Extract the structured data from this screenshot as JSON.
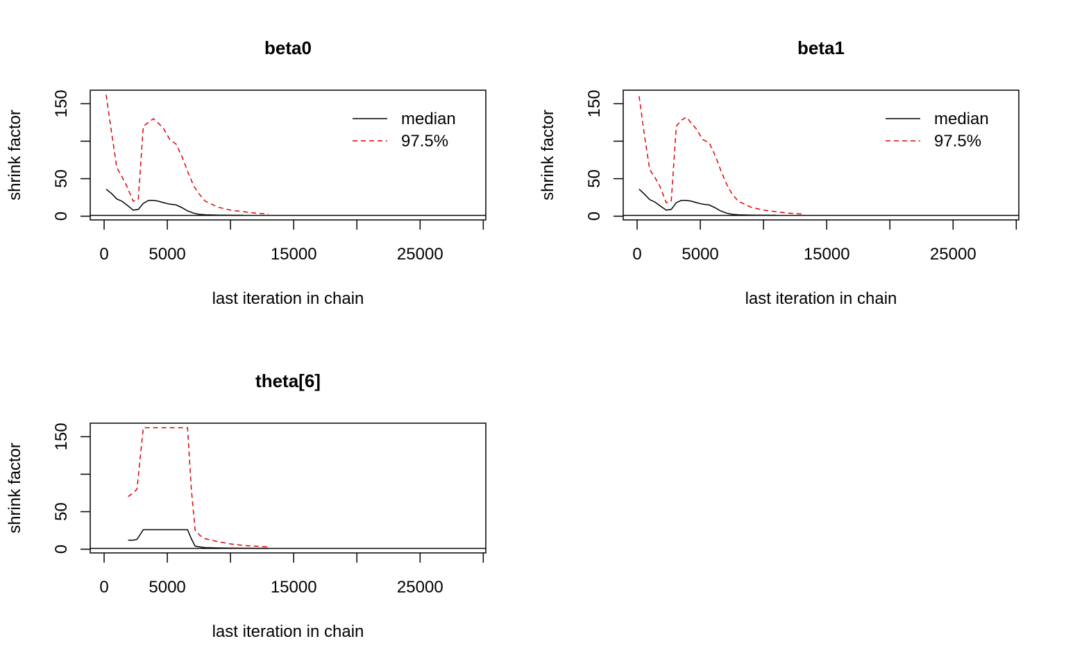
{
  "chart_data": [
    {
      "type": "line",
      "title": "beta0",
      "xlabel": "last iteration in chain",
      "ylabel": "shrink factor",
      "xlim": [
        -1100,
        30200
      ],
      "ylim": [
        -5,
        168
      ],
      "x_ticks": [
        0,
        5000,
        10000,
        15000,
        20000,
        25000,
        30000
      ],
      "x_tick_labels": [
        "0",
        "5000",
        "",
        "15000",
        "",
        "25000",
        ""
      ],
      "y_ticks": [
        0,
        50,
        100,
        150
      ],
      "y_tick_labels": [
        "0",
        "50",
        "",
        "150"
      ],
      "hline": 1,
      "legend": {
        "position": "top-right",
        "entries": [
          "median",
          "97.5%"
        ]
      },
      "series": [
        {
          "name": "median",
          "color": "#000000",
          "dash": "solid",
          "x": [
            160,
            600,
            1000,
            1400,
            1800,
            2300,
            2700,
            3100,
            3500,
            3900,
            4300,
            4700,
            5200,
            5700,
            6200,
            6600,
            7100,
            7500,
            8000,
            9000,
            10000,
            11000
          ],
          "y": [
            36,
            30,
            23,
            20,
            15,
            8,
            9,
            17,
            21,
            21,
            20,
            18,
            16,
            15,
            11,
            7,
            4,
            2.5,
            1.8,
            1.4,
            1.2,
            1.1
          ]
        },
        {
          "name": "97.5%",
          "color": "#e00000",
          "dash": "dashed",
          "x": [
            160,
            600,
            1000,
            1400,
            1800,
            2300,
            2700,
            3100,
            3500,
            3900,
            4300,
            4700,
            5200,
            5700,
            6200,
            6600,
            7100,
            7500,
            8000,
            9000,
            10000,
            11000,
            12000,
            13000
          ],
          "y": [
            162,
            110,
            65,
            53,
            40,
            20,
            22,
            120,
            125,
            130,
            124,
            117,
            102,
            96,
            78,
            60,
            40,
            30,
            20,
            12,
            8,
            6,
            4,
            3
          ]
        }
      ]
    },
    {
      "type": "line",
      "title": "beta1",
      "xlabel": "last iteration in chain",
      "ylabel": "shrink factor",
      "xlim": [
        -1100,
        30200
      ],
      "ylim": [
        -5,
        168
      ],
      "x_ticks": [
        0,
        5000,
        10000,
        15000,
        20000,
        25000,
        30000
      ],
      "x_tick_labels": [
        "0",
        "5000",
        "",
        "15000",
        "",
        "25000",
        ""
      ],
      "y_ticks": [
        0,
        50,
        100,
        150
      ],
      "y_tick_labels": [
        "0",
        "50",
        "",
        "150"
      ],
      "hline": 1,
      "legend": {
        "position": "top-right",
        "entries": [
          "median",
          "97.5%"
        ]
      },
      "series": [
        {
          "name": "median",
          "color": "#000000",
          "dash": "solid",
          "x": [
            160,
            600,
            1000,
            1400,
            1800,
            2300,
            2700,
            3100,
            3500,
            3900,
            4300,
            4700,
            5200,
            5700,
            6200,
            6600,
            7100,
            7500,
            8000,
            9000,
            10000,
            11000
          ],
          "y": [
            36,
            29,
            22,
            19,
            14,
            8,
            9,
            18,
            21,
            21,
            20,
            18,
            16,
            15,
            11,
            7,
            4,
            2.5,
            1.8,
            1.4,
            1.2,
            1.1
          ]
        },
        {
          "name": "97.5%",
          "color": "#e00000",
          "dash": "dashed",
          "x": [
            160,
            600,
            1000,
            1400,
            1800,
            2300,
            2700,
            3100,
            3500,
            3900,
            4300,
            4700,
            5200,
            5700,
            6200,
            6600,
            7100,
            7500,
            8000,
            9000,
            10000,
            11000,
            12000,
            13000
          ],
          "y": [
            160,
            105,
            62,
            52,
            40,
            18,
            20,
            120,
            128,
            132,
            124,
            116,
            102,
            98,
            80,
            62,
            42,
            30,
            20,
            12,
            8,
            6,
            4,
            3
          ]
        }
      ]
    },
    {
      "type": "line",
      "title": "theta[6]",
      "xlabel": "last iteration in chain",
      "ylabel": "shrink factor",
      "xlim": [
        -1100,
        30200
      ],
      "ylim": [
        -5,
        168
      ],
      "x_ticks": [
        0,
        5000,
        10000,
        15000,
        20000,
        25000,
        30000
      ],
      "x_tick_labels": [
        "0",
        "5000",
        "",
        "15000",
        "",
        "25000",
        ""
      ],
      "y_ticks": [
        0,
        50,
        100,
        150
      ],
      "y_tick_labels": [
        "0",
        "50",
        "",
        "150"
      ],
      "hline": 1,
      "series": [
        {
          "name": "median",
          "color": "#000000",
          "dash": "solid",
          "x": [
            1900,
            2300,
            2600,
            3100,
            3500,
            4000,
            5000,
            6000,
            6600,
            6900,
            7200,
            7600,
            8000,
            9000,
            10000,
            11000,
            12000,
            13000
          ],
          "y": [
            12,
            12,
            13,
            26,
            26,
            26,
            26,
            26,
            26,
            14,
            4,
            3,
            2,
            1.6,
            1.4,
            1.2,
            1.1,
            1.0
          ]
        },
        {
          "name": "97.5%",
          "color": "#e00000",
          "dash": "dashed",
          "x": [
            1900,
            2300,
            2600,
            3100,
            3500,
            4000,
            5000,
            6000,
            6600,
            6900,
            7200,
            7600,
            8000,
            9000,
            10000,
            11000,
            12000,
            13000
          ],
          "y": [
            70,
            75,
            80,
            162,
            162,
            162,
            162,
            162,
            162,
            80,
            25,
            18,
            14,
            10,
            7,
            5,
            4,
            3
          ]
        }
      ]
    }
  ]
}
